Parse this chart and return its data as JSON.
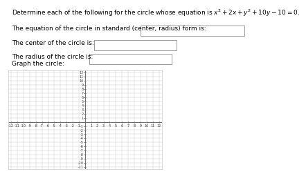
{
  "title_text": "Determine each of the following for the circle whose equation is $x^2+ 2x + y^2+ 10y - 10 = 0$.",
  "line1_label": "The equation of the circle in standard (center, radius) form is:",
  "line2_label": "The center of the circle is:",
  "line3_label": "The radius of the circle is:",
  "graph_label": "Graph the circle:",
  "box_facecolor": "white",
  "box_edgecolor": "#888888",
  "grid_color": "#cccccc",
  "axis_color": "#555555",
  "background_color": "white",
  "xlim": [
    -12.5,
    12.5
  ],
  "ylim": [
    -11.5,
    12.5
  ],
  "xticks": [
    -12,
    -11,
    -10,
    -9,
    -8,
    -7,
    -6,
    -5,
    -4,
    -3,
    -2,
    -1,
    1,
    2,
    3,
    4,
    5,
    6,
    7,
    8,
    9,
    10,
    11,
    12
  ],
  "yticks": [
    -11,
    -10,
    -9,
    -8,
    -7,
    -6,
    -5,
    -4,
    -3,
    -2,
    -1,
    1,
    2,
    3,
    4,
    5,
    6,
    7,
    8,
    9,
    10,
    11,
    12
  ],
  "font_size_title": 6.5,
  "font_size_labels": 6.5,
  "font_size_graph_label": 6.5,
  "font_size_ticks": 3.5,
  "tick_label_color": "#444444"
}
